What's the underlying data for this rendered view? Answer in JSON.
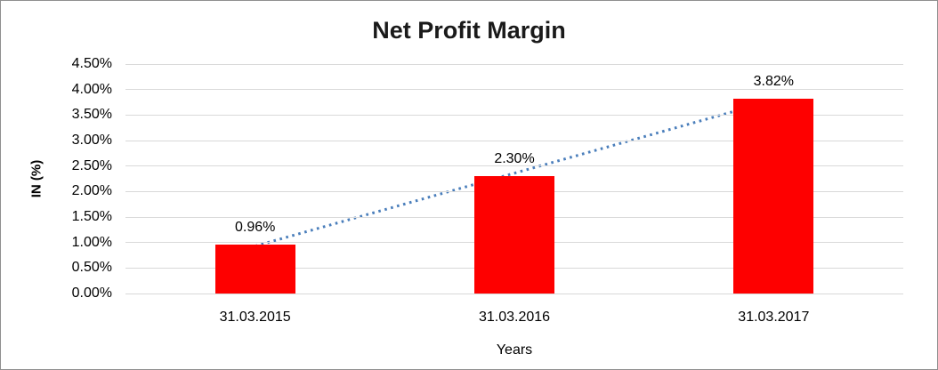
{
  "chart_data": {
    "type": "bar",
    "title": "Net Profit Margin",
    "categories": [
      "31.03.2015",
      "31.03.2016",
      "31.03.2017"
    ],
    "values": [
      0.96,
      2.3,
      3.82
    ],
    "data_labels": [
      "0.96%",
      "2.30%",
      "3.82%"
    ],
    "xlabel": "Years",
    "ylabel": "IN (%)",
    "ylim": [
      0,
      4.5
    ],
    "ytick_step": 0.5,
    "ytick_labels": [
      "0.00%",
      "0.50%",
      "1.00%",
      "1.50%",
      "2.00%",
      "2.50%",
      "3.00%",
      "3.50%",
      "4.00%",
      "4.50%"
    ],
    "grid": true,
    "legend_position": "none",
    "colors": {
      "bar": "#fe0000",
      "trendline": "#4a7ebb",
      "gridline": "#d9d9d9",
      "title_text": "#1a1a1a",
      "axis_text": "#000000"
    },
    "trendline": {
      "type": "linear",
      "style": "dotted"
    }
  }
}
